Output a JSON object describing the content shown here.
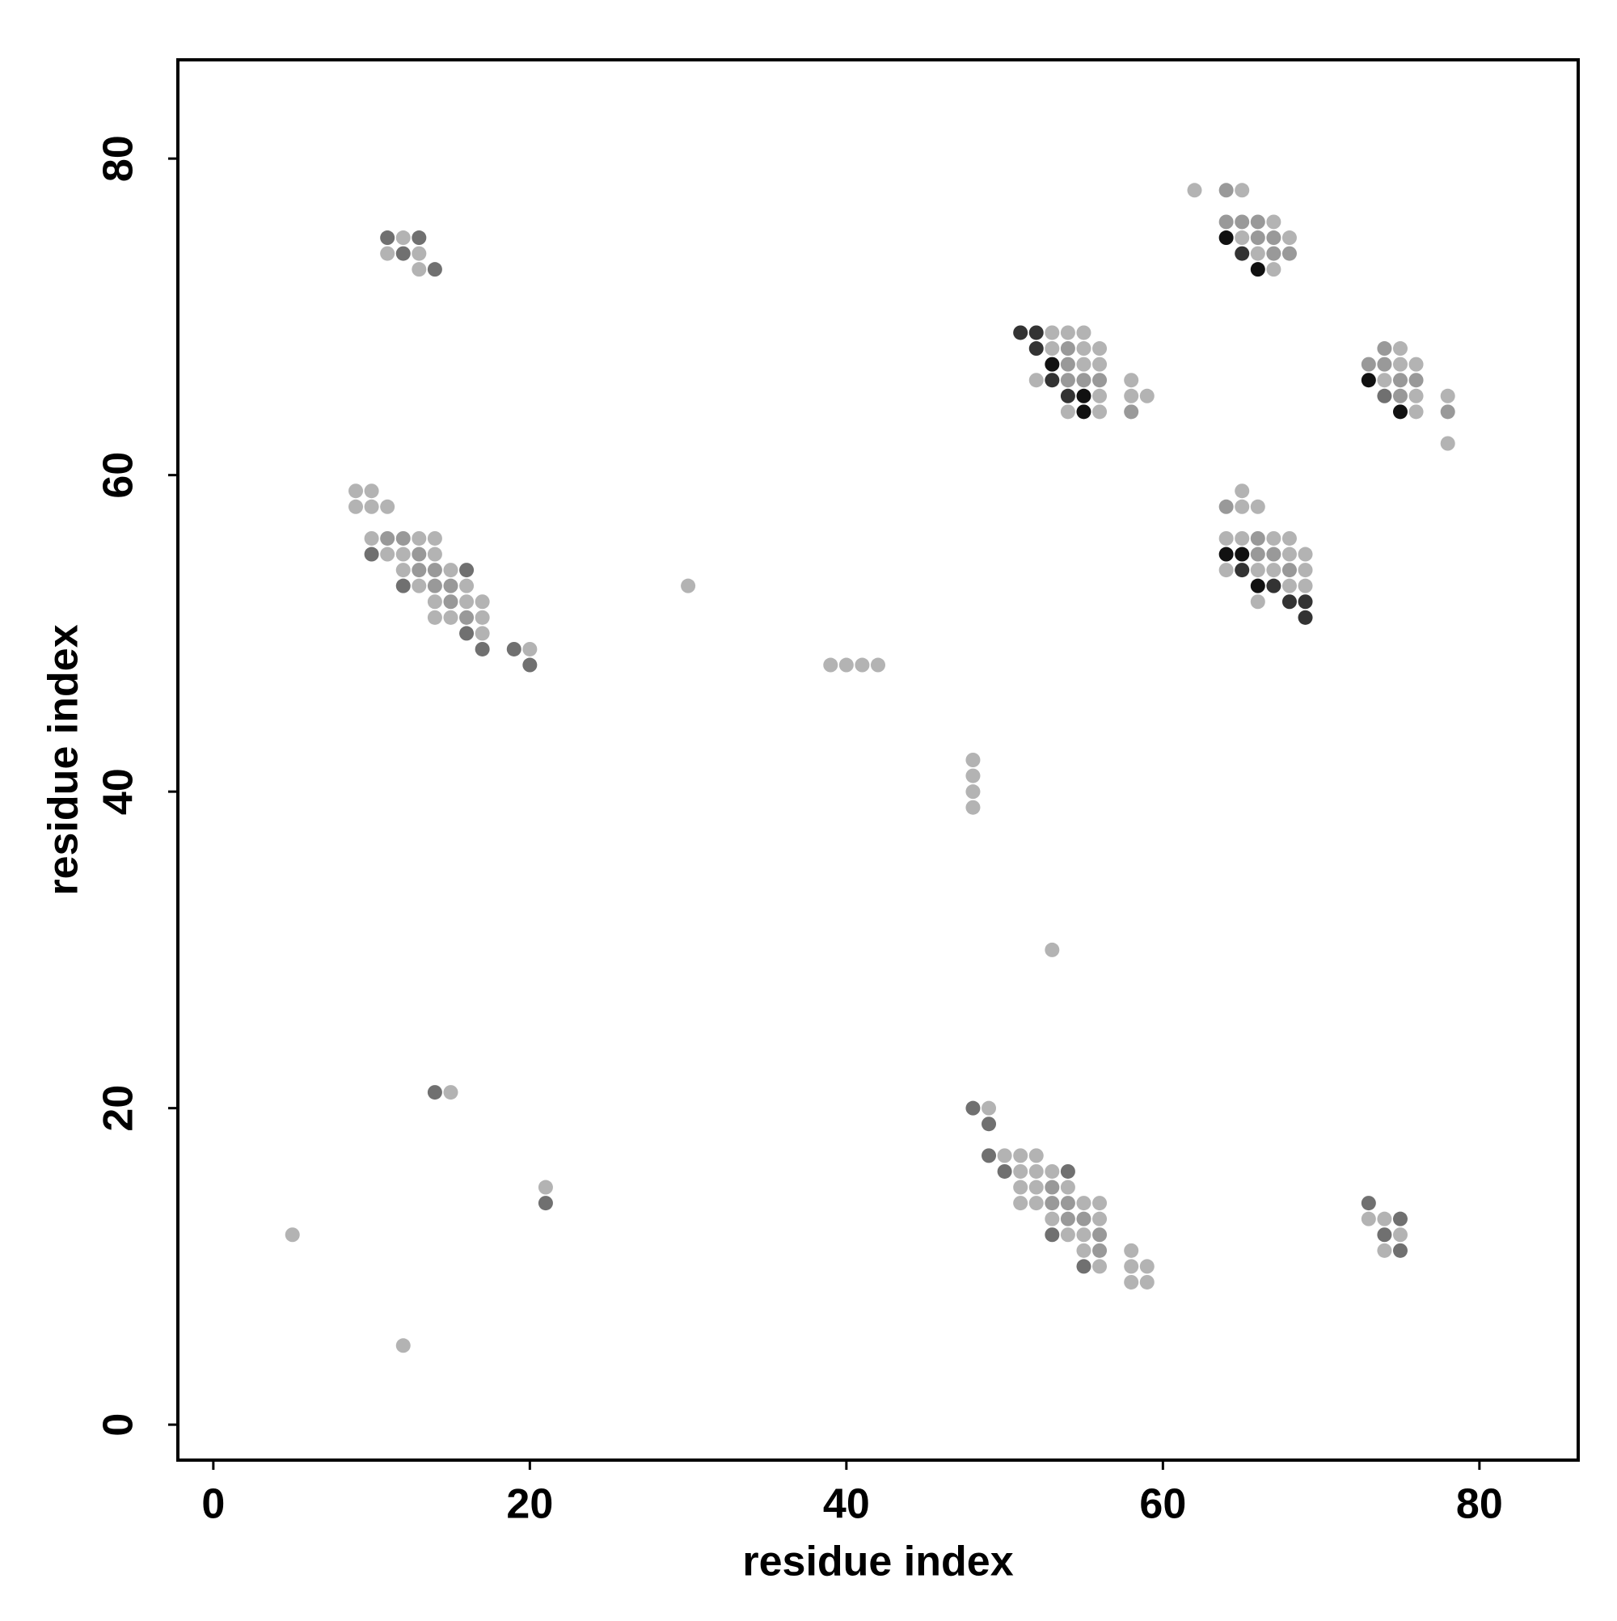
{
  "chart_data": {
    "type": "scatter",
    "xlabel": "residue index",
    "ylabel": "residue index",
    "xlim": [
      -2.24,
      86.24
    ],
    "ylim": [
      -2.24,
      86.24
    ],
    "xticks": [
      0,
      20,
      40,
      60,
      80
    ],
    "yticks": [
      0,
      20,
      40,
      60,
      80
    ],
    "series": [
      {
        "color": "#b3b3b3",
        "x": [
          12,
          11,
          13,
          13,
          9,
          10,
          9,
          10,
          11,
          10,
          13,
          14,
          11,
          12,
          14,
          12,
          15,
          13,
          16,
          14,
          16,
          17,
          14,
          15,
          17,
          17,
          20,
          30,
          39,
          40,
          41,
          42,
          48,
          48,
          48,
          48,
          53,
          53,
          54,
          55,
          53,
          55,
          56,
          55,
          56,
          52,
          56,
          54,
          56,
          58,
          58,
          59,
          62,
          65,
          67,
          65,
          68,
          66,
          67,
          75,
          75,
          76,
          74,
          76,
          78,
          76,
          78,
          65,
          65,
          66,
          64,
          65,
          67,
          68,
          68,
          69,
          64,
          66,
          67,
          69,
          68,
          69,
          66,
          15,
          21,
          5,
          12,
          49,
          50,
          51,
          52,
          51,
          52,
          53,
          51,
          52,
          54,
          51,
          52,
          55,
          56,
          53,
          56,
          54,
          55,
          55,
          56,
          58,
          58,
          59,
          58,
          59,
          73,
          74,
          75,
          74
        ],
        "y": [
          75,
          74,
          74,
          73,
          59,
          59,
          58,
          58,
          58,
          56,
          56,
          56,
          55,
          55,
          55,
          54,
          54,
          53,
          53,
          52,
          52,
          52,
          51,
          51,
          51,
          50,
          49,
          53,
          48,
          48,
          48,
          48,
          42,
          41,
          40,
          39,
          30,
          69,
          69,
          69,
          68,
          68,
          68,
          67,
          67,
          66,
          65,
          64,
          64,
          66,
          65,
          65,
          78,
          78,
          76,
          75,
          75,
          74,
          73,
          68,
          67,
          67,
          66,
          65,
          65,
          64,
          62,
          59,
          58,
          58,
          56,
          56,
          56,
          56,
          55,
          55,
          54,
          54,
          54,
          54,
          53,
          53,
          52,
          21,
          15,
          12,
          5,
          20,
          17,
          17,
          17,
          16,
          16,
          16,
          15,
          15,
          15,
          14,
          14,
          14,
          14,
          13,
          13,
          12,
          12,
          11,
          10,
          11,
          10,
          10,
          9,
          9,
          13,
          13,
          12,
          11
        ]
      },
      {
        "color": "#999999",
        "x": [
          11,
          12,
          13,
          13,
          14,
          14,
          15,
          15,
          16,
          54,
          54,
          54,
          55,
          56,
          58,
          64,
          64,
          65,
          66,
          66,
          67,
          67,
          68,
          74,
          73,
          74,
          75,
          76,
          75,
          78,
          64,
          66,
          66,
          67,
          68,
          53,
          53,
          54,
          54,
          55,
          56,
          56
        ],
        "y": [
          56,
          56,
          55,
          54,
          54,
          53,
          53,
          52,
          51,
          68,
          67,
          66,
          66,
          66,
          64,
          78,
          76,
          76,
          76,
          75,
          75,
          74,
          74,
          68,
          67,
          67,
          66,
          66,
          65,
          64,
          58,
          56,
          55,
          55,
          54,
          15,
          14,
          14,
          13,
          13,
          12,
          11
        ]
      },
      {
        "color": "#707070",
        "x": [
          11,
          13,
          12,
          14,
          10,
          16,
          12,
          16,
          17,
          19,
          20,
          74,
          14,
          21,
          48,
          49,
          49,
          50,
          54,
          53,
          55,
          73,
          75,
          74,
          75
        ],
        "y": [
          75,
          75,
          74,
          73,
          55,
          54,
          53,
          50,
          49,
          49,
          48,
          65,
          21,
          14,
          20,
          19,
          17,
          16,
          16,
          12,
          10,
          14,
          13,
          12,
          11
        ]
      },
      {
        "color": "#333333",
        "x": [
          51,
          52,
          52,
          53,
          54,
          65,
          65,
          67,
          68,
          69,
          69
        ],
        "y": [
          69,
          69,
          68,
          66,
          65,
          74,
          54,
          53,
          52,
          52,
          51
        ]
      },
      {
        "color": "#111111",
        "x": [
          53,
          55,
          55,
          64,
          66,
          73,
          75,
          64,
          65,
          66
        ],
        "y": [
          67,
          65,
          64,
          75,
          73,
          66,
          64,
          55,
          55,
          53
        ]
      }
    ]
  }
}
